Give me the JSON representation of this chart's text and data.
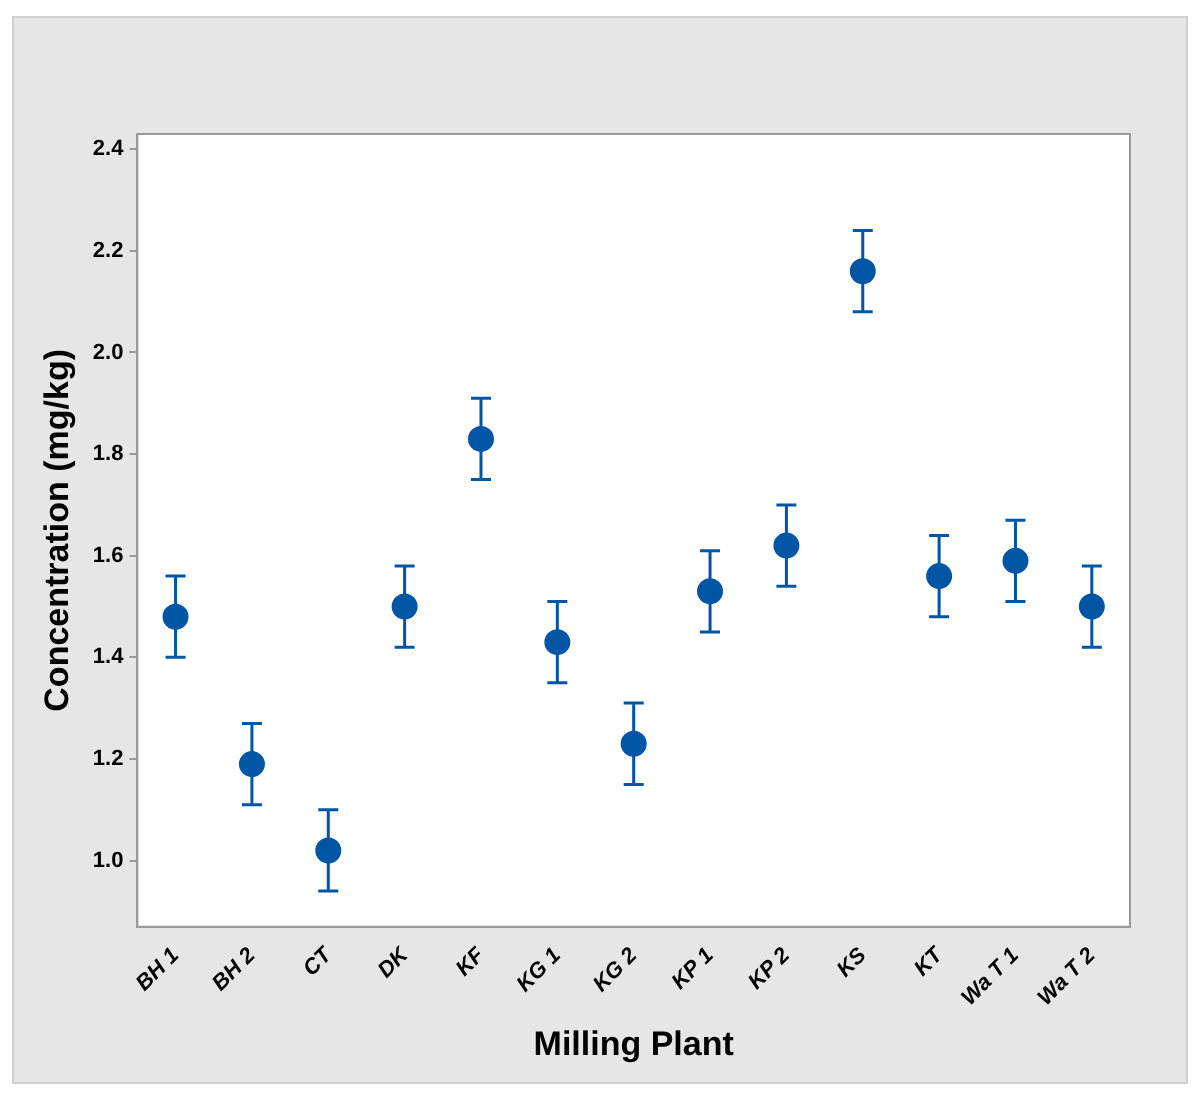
{
  "chart_data": {
    "type": "scatter",
    "xlabel": "Milling Plant",
    "ylabel": "Concentration (mg/kg)",
    "categories": [
      "BH 1",
      "BH 2",
      "CT",
      "DK",
      "KF",
      "KG 1",
      "KG 2",
      "KP 1",
      "KP 2",
      "KS",
      "KT",
      "Wa T 1",
      "Wa T 2"
    ],
    "values": [
      1.48,
      1.19,
      1.02,
      1.5,
      1.83,
      1.43,
      1.23,
      1.53,
      1.62,
      2.16,
      1.56,
      1.59,
      1.5
    ],
    "errors": [
      0.08,
      0.08,
      0.08,
      0.08,
      0.08,
      0.08,
      0.08,
      0.08,
      0.08,
      0.08,
      0.08,
      0.08,
      0.08
    ],
    "color": "#0055a5",
    "marker": "circle",
    "grid": false,
    "legend": false,
    "ylim": [
      0.87,
      2.43
    ],
    "yticks": [
      {
        "value": 1,
        "label": "1.0"
      },
      1.2,
      1.4,
      1.6,
      1.8,
      {
        "value": 2,
        "label": "2.0"
      },
      2.2,
      2.4
    ]
  }
}
